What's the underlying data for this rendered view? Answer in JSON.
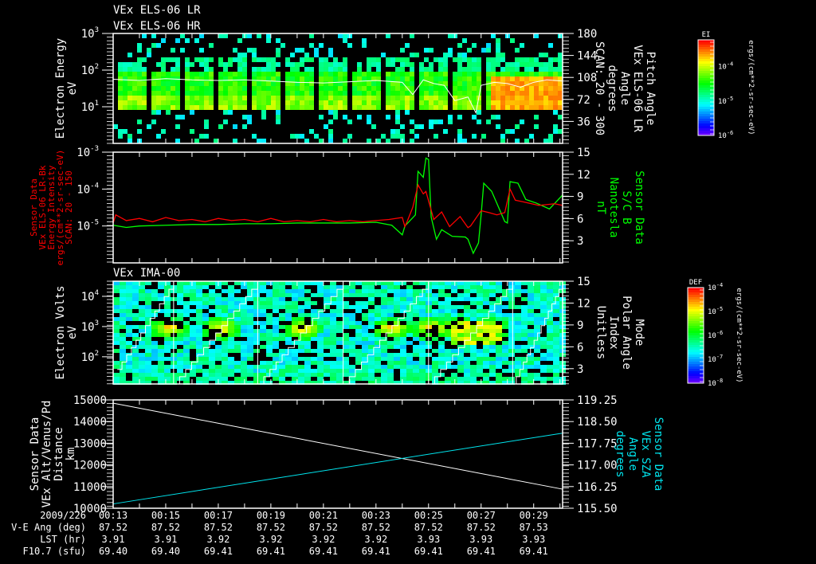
{
  "titles": {
    "p1_line1": "VEx ELS-06 LR",
    "p1_line2": "VEx ELS-06 HR",
    "p3": "VEx IMA-00"
  },
  "colors": {
    "background": "#000000",
    "axes": "#ffffff",
    "green": "#00ff00",
    "red": "#ff0000",
    "cyan": "#00e5ee"
  },
  "time_axis": {
    "start_minute": 13.0,
    "end_minute": 30.1,
    "row_labels": [
      "2009/226",
      "V-E Ang (deg)",
      "LST (hr)",
      "F10.7 (sfu)"
    ],
    "ticks": [
      "00:13",
      "00:15",
      "00:17",
      "00:19",
      "00:21",
      "00:23",
      "00:25",
      "00:27",
      "00:29"
    ],
    "tick_minutes": [
      13,
      15,
      17,
      19,
      21,
      23,
      25,
      27,
      29
    ],
    "ve_ang": [
      "87.52",
      "87.52",
      "87.52",
      "87.52",
      "87.52",
      "87.52",
      "87.52",
      "87.52",
      "87.53"
    ],
    "lst": [
      "3.91",
      "3.91",
      "3.92",
      "3.92",
      "3.92",
      "3.92",
      "3.93",
      "3.93",
      "3.93"
    ],
    "f107": [
      "69.40",
      "69.40",
      "69.41",
      "69.41",
      "69.41",
      "69.41",
      "69.41",
      "69.41",
      "69.41"
    ]
  },
  "chart_data": [
    {
      "type": "heatmap",
      "panel": "els",
      "left_label": [
        "Electron Energy",
        "eV"
      ],
      "right_label": [
        "Pitch Angle",
        "VEx ELS-06 LR",
        "Angle",
        "degrees",
        "SCAN: 20 - 300"
      ],
      "ylim_log10": [
        0,
        3
      ],
      "y_ticks": [
        {
          "base": "10",
          "exp": "3",
          "v": 3
        },
        {
          "base": "10",
          "exp": "2",
          "v": 2
        },
        {
          "base": "10",
          "exp": "1",
          "v": 1
        }
      ],
      "y2lim": [
        0,
        180
      ],
      "y2_ticks": [
        "180",
        "144",
        "108",
        "72",
        "36"
      ],
      "y2_tick_values": [
        180,
        144,
        108,
        72,
        36
      ],
      "colorbar": {
        "title": "EI",
        "unit": "ergs/(cm**2-sr-sec-eV)",
        "ticks": [
          {
            "base": "10",
            "exp": "-4",
            "v": 0.72
          },
          {
            "base": "10",
            "exp": "-5",
            "v": 0.36
          },
          {
            "base": "10",
            "exp": "-6",
            "v": 0.0
          }
        ]
      },
      "pitch_angle_trace_deg": {
        "x": [
          13.0,
          14.0,
          15.0,
          16.0,
          17.0,
          18.0,
          19.0,
          20.0,
          21.0,
          22.0,
          23.0,
          24.0,
          24.4,
          24.8,
          25.2,
          25.6,
          26.0,
          26.5,
          26.8,
          27.0,
          27.5,
          28.0,
          28.5,
          29.0,
          29.5,
          30.1
        ],
        "y": [
          105,
          103,
          106,
          104,
          103,
          104,
          102,
          100,
          99,
          101,
          103,
          100,
          80,
          104,
          98,
          95,
          70,
          76,
          50,
          95,
          100,
          98,
          92,
          100,
          104,
          102
        ]
      }
    },
    {
      "type": "line",
      "panel": "mag",
      "left_label": [
        "Sensor Data",
        "VEx ELS-06 LR-Bk",
        "Energy Intensity",
        "ergs/(cm**2-sr-sec-eV)",
        "SCAN: 20 - 150"
      ],
      "right_label": [
        "Sensor Data",
        "S/C B",
        "Nanotesla",
        "nT"
      ],
      "ylim_log10": [
        -6,
        -3
      ],
      "y_ticks": [
        {
          "base": "10",
          "exp": "-3",
          "v": -3
        },
        {
          "base": "10",
          "exp": "-4",
          "v": -4
        },
        {
          "base": "10",
          "exp": "-5",
          "v": -5
        }
      ],
      "y2lim": [
        0,
        15
      ],
      "y2_ticks": [
        "15",
        "12",
        "9",
        "6",
        "3"
      ],
      "y2_tick_values": [
        15,
        12,
        9,
        6,
        3
      ],
      "series": [
        {
          "name": "Energy Intensity (red, left axis)",
          "color": "#ff0000",
          "x": [
            13.0,
            13.1,
            13.5,
            14.0,
            14.5,
            15.0,
            15.5,
            16.0,
            16.5,
            17.0,
            17.5,
            18.0,
            18.5,
            19.0,
            19.5,
            20.0,
            20.5,
            21.0,
            21.5,
            22.0,
            22.5,
            23.0,
            23.5,
            24.0,
            24.1,
            24.2,
            24.4,
            24.6,
            24.8,
            24.9,
            25.2,
            25.5,
            25.8,
            26.2,
            26.5,
            26.6,
            27.0,
            27.3,
            27.6,
            27.9,
            28.1,
            28.3,
            28.6,
            29.2,
            29.8,
            30.1
          ],
          "y": [
            1.2e-05,
            2e-05,
            1.4e-05,
            1.6e-05,
            1.3e-05,
            1.7e-05,
            1.4e-05,
            1.5e-05,
            1.3e-05,
            1.6e-05,
            1.4e-05,
            1.5e-05,
            1.3e-05,
            1.6e-05,
            1.3e-05,
            1.4e-05,
            1.3e-05,
            1.5e-05,
            1.3e-05,
            1.4e-05,
            1.3e-05,
            1.4e-05,
            1.5e-05,
            1.7e-05,
            9.6e-06,
            1.4e-05,
            3.2e-05,
            0.00013,
            7.4e-05,
            8.6e-05,
            1.5e-05,
            2.4e-05,
            9.6e-06,
            1.8e-05,
            9e-06,
            1e-05,
            2.6e-05,
            2.3e-05,
            2e-05,
            2.3e-05,
            0.0001,
            5e-05,
            4.5e-05,
            3.6e-05,
            4e-05,
            3.6e-05
          ]
        },
        {
          "name": "S/C B (green, right axis, nT)",
          "color": "#00ff00",
          "x": [
            13.0,
            13.5,
            14.0,
            15.0,
            16.0,
            17.0,
            18.0,
            19.0,
            20.0,
            21.0,
            22.0,
            23.0,
            23.6,
            24.0,
            24.1,
            24.5,
            24.6,
            24.8,
            24.9,
            25.0,
            25.1,
            25.3,
            25.5,
            25.9,
            26.4,
            26.5,
            26.7,
            26.9,
            27.0,
            27.1,
            27.4,
            27.9,
            28.0,
            28.1,
            28.4,
            28.7,
            29.1,
            29.6,
            30.1
          ],
          "y": [
            5.1,
            4.8,
            5.0,
            5.1,
            5.2,
            5.2,
            5.3,
            5.3,
            5.4,
            5.4,
            5.4,
            5.5,
            5.1,
            3.8,
            5.0,
            6.5,
            12.4,
            11.6,
            14.2,
            14.0,
            6.2,
            3.2,
            4.5,
            3.6,
            3.5,
            3.2,
            1.3,
            2.7,
            6.5,
            10.8,
            9.7,
            5.6,
            5.4,
            11.0,
            10.8,
            8.6,
            8.1,
            7.3,
            9.2
          ]
        }
      ]
    },
    {
      "type": "heatmap",
      "panel": "ima",
      "left_label": [
        "Electron Volts",
        "eV"
      ],
      "right_label": [
        "Mode",
        "Polar Angle",
        "Index",
        "Unitless"
      ],
      "ylim_log10": [
        1.1,
        4.5
      ],
      "y_ticks": [
        {
          "base": "10",
          "exp": "4",
          "v": 4
        },
        {
          "base": "10",
          "exp": "3",
          "v": 3
        },
        {
          "base": "10",
          "exp": "2",
          "v": 2
        }
      ],
      "y2lim": [
        0.9,
        15
      ],
      "y2_ticks": [
        "15",
        "12",
        "9",
        "6",
        "3"
      ],
      "y2_tick_values": [
        15,
        12,
        9,
        6,
        3
      ],
      "colorbar": {
        "title": "DEF",
        "unit": "ergs/(cm**2-sr-sec-eV)",
        "ticks": [
          {
            "base": "10",
            "exp": "-4",
            "v": 1
          },
          {
            "base": "10",
            "exp": "-5",
            "v": 0.75
          },
          {
            "base": "10",
            "exp": "-6",
            "v": 0.5
          },
          {
            "base": "10",
            "exp": "-7",
            "v": 0.25
          },
          {
            "base": "10",
            "exp": "-8",
            "v": 0
          }
        ]
      },
      "polar_angle_scan_resets_minutes": [
        15.3,
        18.5,
        21.75,
        25.0,
        28.2
      ]
    },
    {
      "type": "line",
      "panel": "orbit",
      "left_label": [
        "Sensor Data",
        "VEx Alt/Venus/Pd",
        "Distance",
        "km"
      ],
      "right_label": [
        "Sensor Data",
        "VEx SZA",
        "Angle",
        "degrees"
      ],
      "ylim": [
        10000,
        15000
      ],
      "y_ticks": [
        "15000",
        "14000",
        "13000",
        "12000",
        "11000",
        "10000"
      ],
      "y_tick_values": [
        15000,
        14000,
        13000,
        12000,
        11000,
        10000
      ],
      "y2lim": [
        115.5,
        119.25
      ],
      "y2_ticks": [
        "119.25",
        "118.50",
        "117.75",
        "117.00",
        "116.25",
        "115.50"
      ],
      "y2_tick_values": [
        119.25,
        118.5,
        117.75,
        117.0,
        116.25,
        115.5
      ],
      "series": [
        {
          "name": "Altitude (white, km)",
          "color": "#ffffff",
          "x": [
            13.0,
            30.1
          ],
          "y": [
            14850,
            10880
          ]
        },
        {
          "name": "SZA (cyan, deg)",
          "color": "#00e5ee",
          "x": [
            13.0,
            30.1
          ],
          "y": [
            115.65,
            118.1
          ]
        }
      ]
    }
  ]
}
